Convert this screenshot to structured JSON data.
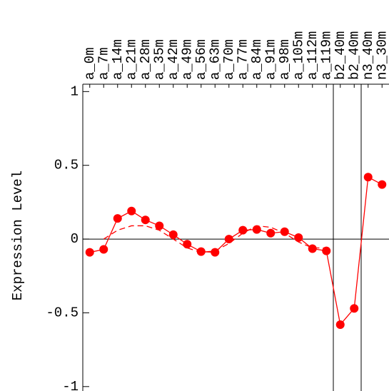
{
  "chart_data": {
    "type": "line",
    "y_label": "Expression Level",
    "categories": [
      "a_0m",
      "a_7m",
      "a_14m",
      "a_21m",
      "a_28m",
      "a_35m",
      "a_42m",
      "a_49m",
      "a_56m",
      "a_63m",
      "a_70m",
      "a_77m",
      "a_84m",
      "a_91m",
      "a_98m",
      "a_105m",
      "a_112m",
      "a_119m",
      "b2_40m",
      "b2_40m",
      "n3_40m",
      "n3_30m"
    ],
    "series": [
      {
        "color": "#ff0000",
        "values": [
          -0.09,
          -0.07,
          0.14,
          0.19,
          0.13,
          0.09,
          0.03,
          -0.035,
          -0.085,
          -0.09,
          0.0,
          0.06,
          0.065,
          0.04,
          0.05,
          0.01,
          -0.065,
          -0.08,
          -0.58,
          -0.47,
          0.42,
          0.37
        ]
      },
      {
        "color": "#ff0000",
        "dashed": true,
        "values": [
          null,
          0.0,
          0.06,
          0.09,
          0.09,
          0.06,
          0.0,
          -0.06,
          -0.09,
          -0.08,
          -0.03,
          0.04,
          0.09,
          0.08,
          0.04,
          -0.02,
          -0.06,
          -0.06,
          null,
          null,
          null,
          null
        ]
      }
    ],
    "ylim": [
      -1.03,
      1.05
    ],
    "yticks": [
      -1,
      -0.5,
      0,
      0.5,
      1
    ]
  }
}
